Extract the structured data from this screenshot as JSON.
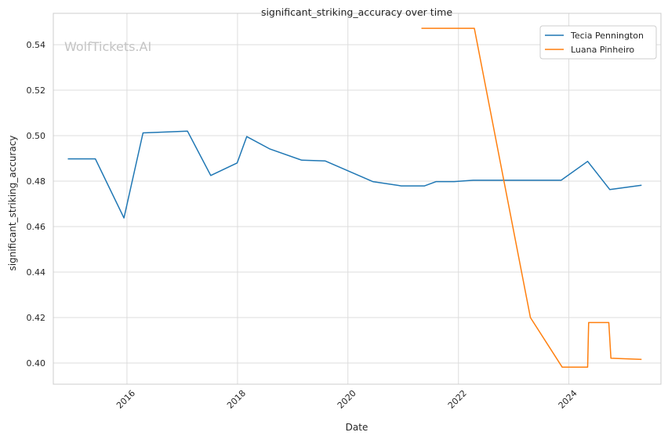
{
  "chart_data": {
    "type": "line",
    "title": "significant_striking_accuracy over time",
    "xlabel": "Date",
    "ylabel": "significant_striking_accuracy",
    "watermark": "WolfTickets.AI",
    "x_ticks": [
      "2016",
      "2018",
      "2020",
      "2022",
      "2024"
    ],
    "y_ticks": [
      "0.40",
      "0.42",
      "0.44",
      "0.46",
      "0.48",
      "0.50",
      "0.52",
      "0.54"
    ],
    "xlim": [
      "2014-09-01",
      "2025-09-01"
    ],
    "ylim": [
      0.3907,
      0.5538
    ],
    "grid": true,
    "legend_position": "upper-right",
    "series": [
      {
        "name": "Tecia Pennington",
        "color": "#1f77b4",
        "points": [
          [
            "2014-12-06",
            0.4898
          ],
          [
            "2015-06-06",
            0.4898
          ],
          [
            "2015-12-12",
            0.4638
          ],
          [
            "2016-04-16",
            0.5012
          ],
          [
            "2017-02-04",
            0.502
          ],
          [
            "2017-07-08",
            0.4825
          ],
          [
            "2017-12-30",
            0.488
          ],
          [
            "2018-03-03",
            0.4996
          ],
          [
            "2018-08-04",
            0.4941
          ],
          [
            "2019-03-02",
            0.4892
          ],
          [
            "2019-08-03",
            0.4889
          ],
          [
            "2020-06-13",
            0.4798
          ],
          [
            "2020-12-19",
            0.4779
          ],
          [
            "2021-05-22",
            0.4779
          ],
          [
            "2021-08-07",
            0.4798
          ],
          [
            "2021-12-04",
            0.4798
          ],
          [
            "2022-04-09",
            0.4804
          ],
          [
            "2023-11-11",
            0.4804
          ],
          [
            "2024-05-04",
            0.4887
          ],
          [
            "2024-09-28",
            0.4763
          ],
          [
            "2025-04-26",
            0.4782
          ]
        ]
      },
      {
        "name": "Luana Pinheiro",
        "color": "#ff7f0e",
        "points": [
          [
            "2021-05-01",
            0.5472
          ],
          [
            "2022-04-16",
            0.5472
          ],
          [
            "2023-04-22",
            0.42
          ],
          [
            "2023-11-18",
            0.3982
          ],
          [
            "2024-05-04",
            0.3982
          ],
          [
            "2024-05-11",
            0.4178
          ],
          [
            "2024-09-21",
            0.4178
          ],
          [
            "2024-10-05",
            0.4021
          ],
          [
            "2025-04-26",
            0.4016
          ]
        ]
      }
    ]
  }
}
